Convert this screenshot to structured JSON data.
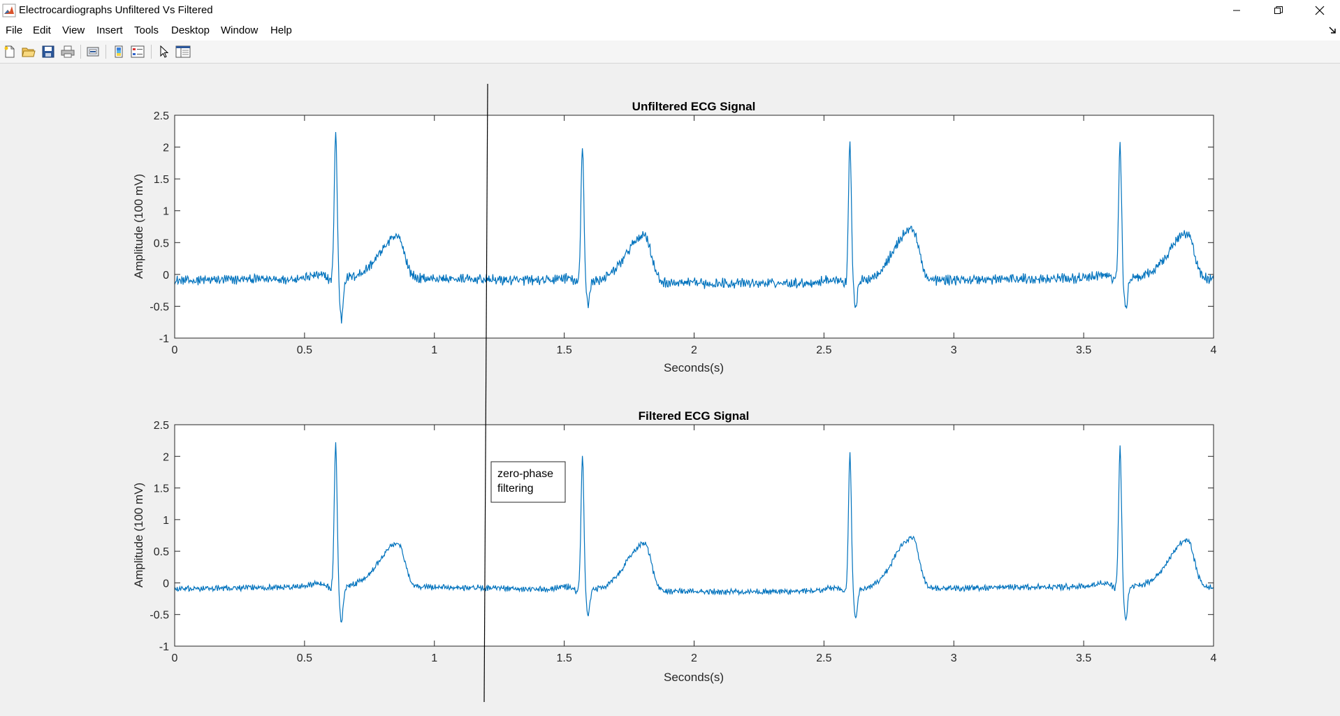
{
  "window": {
    "title": "Electrocardiographs Unfiltered Vs Filtered",
    "controls": [
      "minimize",
      "restore",
      "close"
    ]
  },
  "menu": [
    "File",
    "Edit",
    "View",
    "Insert",
    "Tools",
    "Desktop",
    "Window",
    "Help"
  ],
  "toolbar": {
    "buttons": [
      "new-figure-icon",
      "open-file-icon",
      "save-icon",
      "print-icon",
      "link-plot-icon",
      "colorbar-icon",
      "legend-icon",
      "edit-plot-icon",
      "property-inspector-icon"
    ]
  },
  "colors": {
    "signal": "#0072bd",
    "axes_background": "#ffffff",
    "figure_background": "#f0f0f0"
  },
  "chart_data": [
    {
      "type": "line",
      "title": "Unfiltered ECG Signal",
      "xlabel": "Seconds(s)",
      "ylabel": "Amplitude (100 mV)",
      "xlim": [
        0,
        4
      ],
      "ylim": [
        -1,
        2.5
      ],
      "xticks": [
        "0",
        "0.5",
        "1",
        "1.5",
        "2",
        "2.5",
        "3",
        "3.5",
        "4"
      ],
      "yticks": [
        "-1",
        "-0.5",
        "0",
        "0.5",
        "1",
        "1.5",
        "2",
        "2.5"
      ],
      "grid": false,
      "series": [
        {
          "noise_amplitude": 0.06,
          "r_peaks": [
            {
              "t": 0.62,
              "r": 2.3,
              "q": -0.05,
              "s": -0.65
            },
            {
              "t": 1.57,
              "r": 2.15,
              "q": -0.05,
              "s": -0.35
            },
            {
              "t": 2.6,
              "r": 2.2,
              "q": -0.05,
              "s": -0.38
            },
            {
              "t": 3.64,
              "r": 2.1,
              "q": -0.05,
              "s": -0.5
            }
          ],
          "t_waves": [
            {
              "t": 0.86,
              "a": 0.65
            },
            {
              "t": 1.81,
              "a": 0.75
            },
            {
              "t": 2.84,
              "a": 0.82
            },
            {
              "t": 3.9,
              "a": 0.72
            }
          ]
        }
      ]
    },
    {
      "type": "line",
      "title": "Filtered ECG Signal",
      "xlabel": "Seconds(s)",
      "ylabel": "Amplitude (100 mV)",
      "xlim": [
        0,
        4
      ],
      "ylim": [
        -1,
        2.5
      ],
      "xticks": [
        "0",
        "0.5",
        "1",
        "1.5",
        "2",
        "2.5",
        "3",
        "3.5",
        "4"
      ],
      "yticks": [
        "-1",
        "-0.5",
        "0",
        "0.5",
        "1",
        "1.5",
        "2",
        "2.5"
      ],
      "grid": false,
      "series": [
        {
          "noise_amplitude": 0.035,
          "r_peaks": [
            {
              "t": 0.62,
              "r": 2.25,
              "q": -0.05,
              "s": -0.58
            },
            {
              "t": 1.57,
              "r": 2.1,
              "q": -0.05,
              "s": -0.4
            },
            {
              "t": 2.6,
              "r": 2.15,
              "q": -0.05,
              "s": -0.45
            },
            {
              "t": 3.64,
              "r": 2.18,
              "q": -0.05,
              "s": -0.52
            }
          ],
          "t_waves": [
            {
              "t": 0.86,
              "a": 0.7
            },
            {
              "t": 1.81,
              "a": 0.75
            },
            {
              "t": 2.84,
              "a": 0.82
            },
            {
              "t": 3.9,
              "a": 0.75
            }
          ]
        }
      ],
      "annotation": "zero-phase\nfiltering"
    }
  ]
}
